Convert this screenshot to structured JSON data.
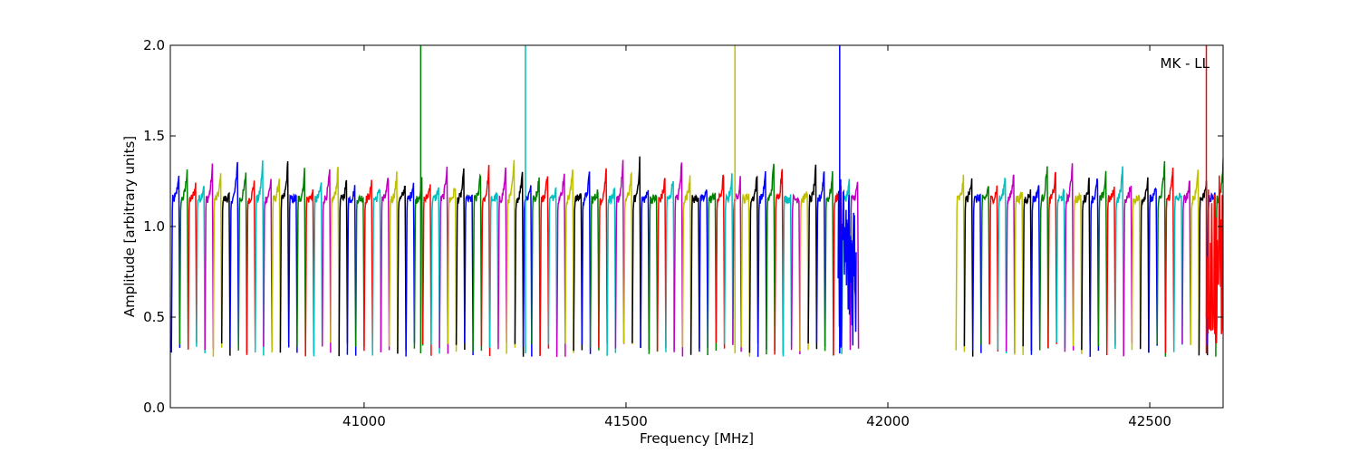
{
  "chart_data": {
    "type": "line",
    "title": "",
    "xlabel": "Frequency [MHz]",
    "ylabel": "Amplitude [arbitrary units]",
    "annotation": "MK - LL",
    "xlim": [
      40630,
      42640
    ],
    "ylim": [
      0.0,
      2.0
    ],
    "xticks": [
      41000,
      41500,
      42000,
      42500
    ],
    "yticks": [
      "0.0",
      "0.5",
      "1.0",
      "1.5",
      "2.0"
    ],
    "grid": false,
    "legend": "none",
    "color_cycle": [
      "#0000ff",
      "#008000",
      "#ff0000",
      "#00bfbf",
      "#bf00bf",
      "#bfbf00",
      "#000000"
    ],
    "channel_groups": [
      {
        "x_start": 40632,
        "x_end": 41940,
        "channel_width": 16
      },
      {
        "x_start": 42130,
        "x_end": 42645,
        "channel_width": 16
      }
    ],
    "channel_profile": {
      "edge_min": 0.28,
      "plateau": 1.15,
      "peak_max": 1.38
    },
    "spikes": [
      {
        "x": 41108,
        "color": "#008000",
        "y_max": 2.0
      },
      {
        "x": 41308,
        "color": "#00bfbf",
        "y_max": 2.0
      },
      {
        "x": 41708,
        "color": "#bfbf00",
        "y_max": 2.0
      },
      {
        "x": 41908,
        "color": "#0000ff",
        "y_max": 2.0
      },
      {
        "x": 42608,
        "color": "#ff0000",
        "y_max": 2.0
      }
    ],
    "noisy_regions": [
      {
        "x_start": 41905,
        "x_end": 41940,
        "color": "#0000ff",
        "y_min": 0.33
      },
      {
        "x_start": 42608,
        "x_end": 42645,
        "color": "#ff0000",
        "y_min": 0.32
      }
    ]
  }
}
